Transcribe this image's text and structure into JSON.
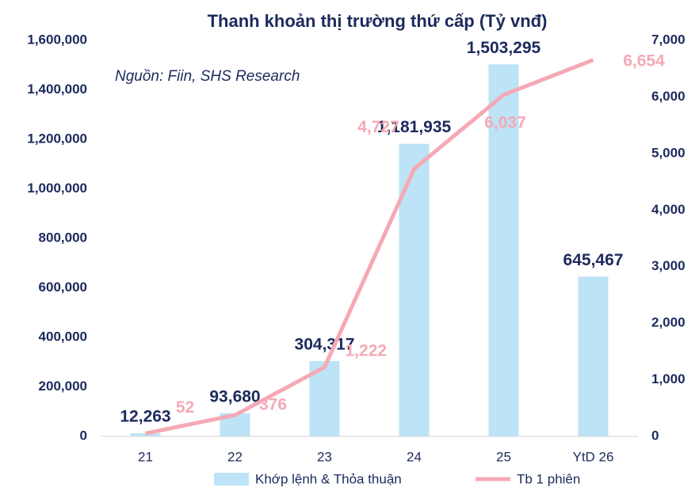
{
  "chart_data": {
    "type": "bar",
    "title": "Thanh khoản thị trường thứ cấp (Tỷ vnđ)",
    "annotation": "Nguồn: Fiin, SHS Research",
    "categories": [
      "21",
      "22",
      "23",
      "24",
      "25",
      "YtD 26"
    ],
    "series": [
      {
        "name": "Khớp lệnh & Thỏa thuận",
        "type": "bar",
        "color": "#bde3f6",
        "values": [
          12263,
          93680,
          304317,
          1181935,
          1503295,
          645467
        ],
        "value_labels": [
          "12,263",
          "93,680",
          "304,317",
          "1,181,935",
          "1,503,295",
          "645,467"
        ]
      },
      {
        "name": "Tb 1 phiên",
        "type": "line",
        "axis": "y2",
        "color": "#f5a9b5",
        "values": [
          52,
          376,
          1222,
          4727,
          6037,
          6654
        ],
        "value_labels": [
          "52",
          "376",
          "1,222",
          "4,727",
          "6,037",
          "6,654"
        ]
      }
    ],
    "ylim": [
      0,
      1600000
    ],
    "yticks": [
      0,
      {
        "value": 200000,
        "label": "200,000"
      },
      {
        "value": 400000,
        "label": "400,000"
      },
      {
        "value": 600000,
        "label": "600,000"
      },
      {
        "value": 800000,
        "label": "800,000"
      },
      {
        "value": 1000000,
        "label": "1,000,000"
      },
      {
        "value": 1200000,
        "label": "1,200,000"
      },
      {
        "value": 1400000,
        "label": "1,400,000"
      },
      {
        "value": 1600000,
        "label": "1,600,000"
      }
    ],
    "y2lim": [
      0,
      7000
    ],
    "y2ticks": [
      0,
      {
        "value": 1000,
        "label": "1,000"
      },
      {
        "value": 2000,
        "label": "2,000"
      },
      {
        "value": 3000,
        "label": "3,000"
      },
      {
        "value": 4000,
        "label": "4,000"
      },
      {
        "value": 5000,
        "label": "5,000"
      },
      {
        "value": 6000,
        "label": "6,000"
      },
      {
        "value": 7000,
        "label": "7,000"
      }
    ],
    "legend": "bottom"
  }
}
